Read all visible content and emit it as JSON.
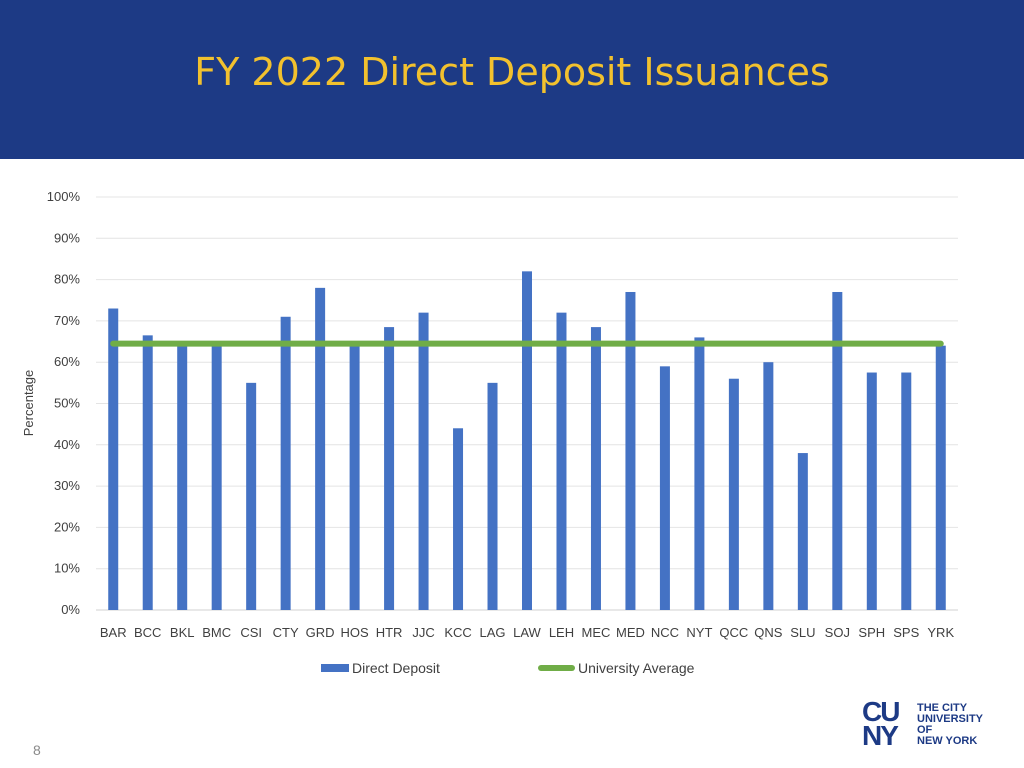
{
  "slide": {
    "title": "FY 2022 Direct Deposit Issuances",
    "page_number": "8"
  },
  "logo": {
    "mark_line1": "CU",
    "mark_line2": "NY",
    "text_lines": [
      "THE CITY",
      "UNIVERSITY",
      "OF",
      "NEW YORK"
    ]
  },
  "colors": {
    "header_bg": "#1d3a85",
    "title": "#f2c12e",
    "bar": "#4472c4",
    "average_line": "#70ad47"
  },
  "chart_data": {
    "type": "bar",
    "title": "",
    "xlabel": "",
    "ylabel": "Percentage",
    "ylim": [
      0,
      100
    ],
    "yticks": [
      "0%",
      "10%",
      "20%",
      "30%",
      "40%",
      "50%",
      "60%",
      "70%",
      "80%",
      "90%",
      "100%"
    ],
    "grid": true,
    "legend_position": "bottom",
    "categories": [
      "BAR",
      "BCC",
      "BKL",
      "BMC",
      "CSI",
      "CTY",
      "GRD",
      "HOS",
      "HTR",
      "JJC",
      "KCC",
      "LAG",
      "LAW",
      "LEH",
      "MEC",
      "MED",
      "NCC",
      "NYT",
      "QCC",
      "QNS",
      "SLU",
      "SOJ",
      "SPH",
      "SPS",
      "YRK"
    ],
    "series": [
      {
        "name": "Direct Deposit",
        "type": "bar",
        "values": [
          73,
          66.5,
          64.5,
          64.5,
          55,
          71,
          78,
          64.5,
          68.5,
          72,
          44,
          55,
          82,
          72,
          68.5,
          77,
          59,
          66,
          56,
          60,
          38,
          77,
          57.5,
          57.5,
          64
        ]
      },
      {
        "name": "University Average",
        "type": "line",
        "value": 64.5
      }
    ]
  }
}
